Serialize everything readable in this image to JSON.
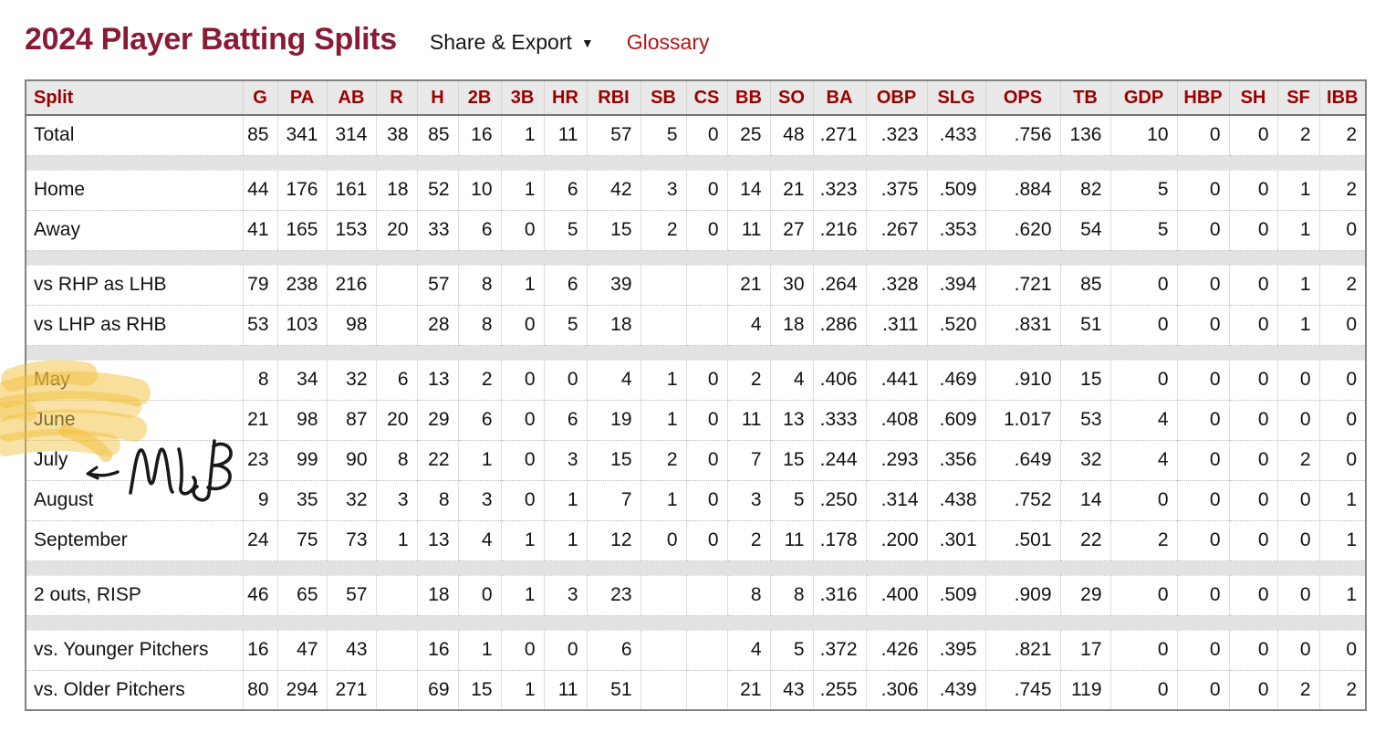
{
  "page": {
    "title": "2024 Player Batting Splits",
    "share_export_label": "Share & Export",
    "share_export_caret": "▼",
    "glossary_label": "Glossary"
  },
  "colors": {
    "title_text": "#8b1b34",
    "header_text": "#990000",
    "glossary_link": "#b31515",
    "header_bg": "#e9e9e9",
    "separator_bg": "#e2e2e2",
    "highlighter": "#f2bf3a",
    "handwriting_ink": "#191919"
  },
  "table": {
    "columns": [
      "Split",
      "G",
      "PA",
      "AB",
      "R",
      "H",
      "2B",
      "3B",
      "HR",
      "RBI",
      "SB",
      "CS",
      "BB",
      "SO",
      "BA",
      "OBP",
      "SLG",
      "OPS",
      "TB",
      "GDP",
      "HBP",
      "SH",
      "SF",
      "IBB"
    ],
    "groups": [
      {
        "rows": [
          {
            "label": "Total",
            "values": [
              "85",
              "341",
              "314",
              "38",
              "85",
              "16",
              "1",
              "11",
              "57",
              "5",
              "0",
              "25",
              "48",
              ".271",
              ".323",
              ".433",
              ".756",
              "136",
              "10",
              "0",
              "0",
              "2",
              "2"
            ]
          }
        ]
      },
      {
        "rows": [
          {
            "label": "Home",
            "values": [
              "44",
              "176",
              "161",
              "18",
              "52",
              "10",
              "1",
              "6",
              "42",
              "3",
              "0",
              "14",
              "21",
              ".323",
              ".375",
              ".509",
              ".884",
              "82",
              "5",
              "0",
              "0",
              "1",
              "2"
            ]
          },
          {
            "label": "Away",
            "values": [
              "41",
              "165",
              "153",
              "20",
              "33",
              "6",
              "0",
              "5",
              "15",
              "2",
              "0",
              "11",
              "27",
              ".216",
              ".267",
              ".353",
              ".620",
              "54",
              "5",
              "0",
              "0",
              "1",
              "0"
            ]
          }
        ]
      },
      {
        "rows": [
          {
            "label": "vs RHP as LHB",
            "values": [
              "79",
              "238",
              "216",
              "",
              "57",
              "8",
              "1",
              "6",
              "39",
              "",
              "",
              "21",
              "30",
              ".264",
              ".328",
              ".394",
              ".721",
              "85",
              "0",
              "0",
              "0",
              "1",
              "2"
            ]
          },
          {
            "label": "vs LHP as RHB",
            "values": [
              "53",
              "103",
              "98",
              "",
              "28",
              "8",
              "0",
              "5",
              "18",
              "",
              "",
              "4",
              "18",
              ".286",
              ".311",
              ".520",
              ".831",
              "51",
              "0",
              "0",
              "0",
              "1",
              "0"
            ]
          }
        ]
      },
      {
        "rows": [
          {
            "label": "May",
            "values": [
              "8",
              "34",
              "32",
              "6",
              "13",
              "2",
              "0",
              "0",
              "4",
              "1",
              "0",
              "2",
              "4",
              ".406",
              ".441",
              ".469",
              ".910",
              "15",
              "0",
              "0",
              "0",
              "0",
              "0"
            ]
          },
          {
            "label": "June",
            "values": [
              "21",
              "98",
              "87",
              "20",
              "29",
              "6",
              "0",
              "6",
              "19",
              "1",
              "0",
              "11",
              "13",
              ".333",
              ".408",
              ".609",
              "1.017",
              "53",
              "4",
              "0",
              "0",
              "0",
              "0"
            ]
          },
          {
            "label": "July",
            "values": [
              "23",
              "99",
              "90",
              "8",
              "22",
              "1",
              "0",
              "3",
              "15",
              "2",
              "0",
              "7",
              "15",
              ".244",
              ".293",
              ".356",
              ".649",
              "32",
              "4",
              "0",
              "0",
              "2",
              "0"
            ]
          },
          {
            "label": "August",
            "values": [
              "9",
              "35",
              "32",
              "3",
              "8",
              "3",
              "0",
              "1",
              "7",
              "1",
              "0",
              "3",
              "5",
              ".250",
              ".314",
              ".438",
              ".752",
              "14",
              "0",
              "0",
              "0",
              "0",
              "1"
            ]
          },
          {
            "label": "September",
            "values": [
              "24",
              "75",
              "73",
              "1",
              "13",
              "4",
              "1",
              "1",
              "12",
              "0",
              "0",
              "2",
              "11",
              ".178",
              ".200",
              ".301",
              ".501",
              "22",
              "2",
              "0",
              "0",
              "0",
              "1"
            ]
          }
        ]
      },
      {
        "rows": [
          {
            "label": "2 outs, RISP",
            "values": [
              "46",
              "65",
              "57",
              "",
              "18",
              "0",
              "1",
              "3",
              "23",
              "",
              "",
              "8",
              "8",
              ".316",
              ".400",
              ".509",
              ".909",
              "29",
              "0",
              "0",
              "0",
              "0",
              "1"
            ]
          }
        ]
      },
      {
        "rows": [
          {
            "label": "vs. Younger Pitchers",
            "values": [
              "16",
              "47",
              "43",
              "",
              "16",
              "1",
              "0",
              "0",
              "6",
              "",
              "",
              "4",
              "5",
              ".372",
              ".426",
              ".395",
              ".821",
              "17",
              "0",
              "0",
              "0",
              "0",
              "0"
            ]
          },
          {
            "label": "vs. Older Pitchers",
            "values": [
              "80",
              "294",
              "271",
              "",
              "69",
              "15",
              "1",
              "11",
              "51",
              "",
              "",
              "21",
              "43",
              ".255",
              ".306",
              ".439",
              ".745",
              "119",
              "0",
              "0",
              "0",
              "2",
              "2"
            ]
          }
        ]
      }
    ]
  },
  "annotations": {
    "highlighted_row_labels": [
      "May",
      "June"
    ],
    "handwriting_text": "MLB",
    "arrow_direction": "left"
  }
}
